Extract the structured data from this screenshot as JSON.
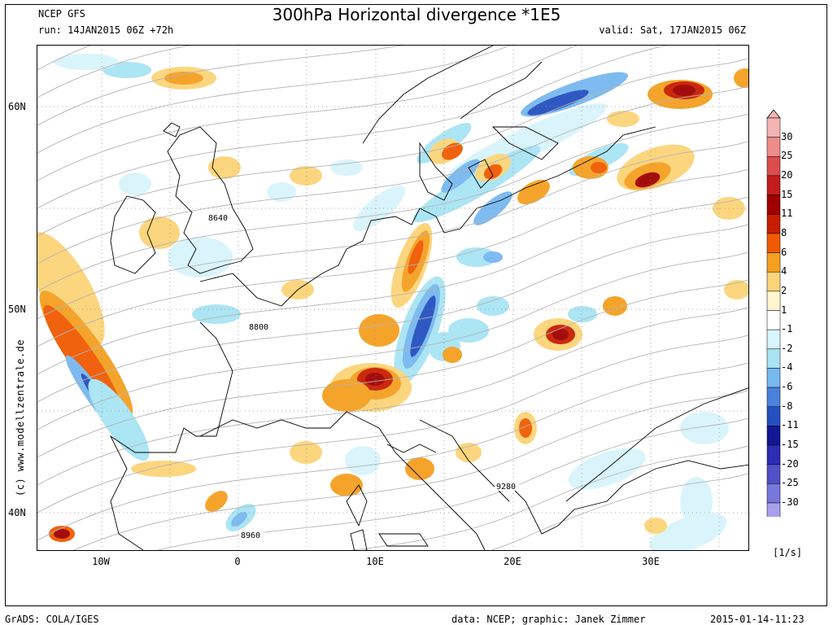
{
  "header": {
    "model": "NCEP GFS",
    "run": "run: 14JAN2015 06Z +72h",
    "title": "300hPa Horizontal divergence *1E5",
    "valid": "valid: Sat, 17JAN2015 06Z"
  },
  "axes": {
    "lat_labels": [
      "60N",
      "50N",
      "40N"
    ],
    "lon_labels": [
      "10W",
      "0",
      "10E",
      "20E",
      "30E"
    ]
  },
  "contour_labels": [
    "8640",
    "8800",
    "9280",
    "8960"
  ],
  "colorbar": {
    "levels": [
      "30",
      "25",
      "20",
      "15",
      "11",
      "8",
      "6",
      "4",
      "2",
      "1",
      "-1",
      "-2",
      "-4",
      "-6",
      "-8",
      "-11",
      "-15",
      "-20",
      "-25",
      "-30"
    ],
    "colors": [
      "#f4b4b4",
      "#ec8c8c",
      "#dc4c4c",
      "#c41c1c",
      "#a00000",
      "#c81e00",
      "#f05a00",
      "#f5a020",
      "#fcd478",
      "#fff5d0",
      "#ffffff",
      "#d8f4fc",
      "#a8e4f4",
      "#78b8f0",
      "#4a82dc",
      "#2450c0",
      "#101896",
      "#2c2cb4",
      "#5050c8",
      "#7878dc",
      "#a8a0ec"
    ],
    "unit": "[1/s]"
  },
  "watermark": "(c) www.modellzentrale.de",
  "footer": {
    "left": "GrADS: COLA/IGES",
    "center": "data: NCEP; graphic: Janek Zimmer",
    "right": "2015-01-14-11:23"
  }
}
